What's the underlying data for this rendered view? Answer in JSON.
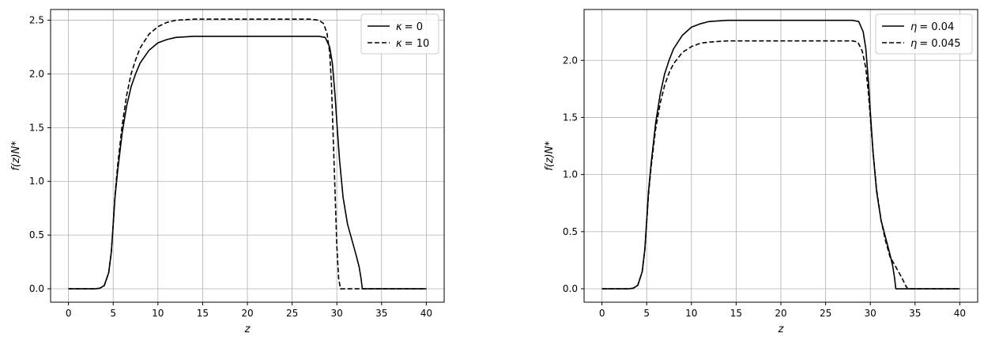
{
  "chart_data": [
    {
      "type": "line",
      "xlabel": "z",
      "ylabel": "f(z)N*",
      "xlim": [
        -2,
        42
      ],
      "ylim": [
        -0.125,
        2.6
      ],
      "xticks": [
        0,
        5,
        10,
        15,
        20,
        25,
        30,
        35,
        40
      ],
      "yticks": [
        0.0,
        0.5,
        1.0,
        1.5,
        2.0,
        2.5
      ],
      "xtick_labels": [
        "0",
        "5",
        "10",
        "15",
        "20",
        "25",
        "30",
        "35",
        "40"
      ],
      "ytick_labels": [
        "0.0",
        "0.5",
        "1.0",
        "1.5",
        "2.0",
        "2.5"
      ],
      "grid": true,
      "legend_position": "top-right",
      "series": [
        {
          "name": "κ = 0",
          "legend_symbol": "κ",
          "legend_value": "= 0",
          "style": "solid",
          "color": "#000000",
          "points": [
            [
              0,
              0
            ],
            [
              3,
              0
            ],
            [
              3.5,
              0.005
            ],
            [
              4,
              0.03
            ],
            [
              4.5,
              0.15
            ],
            [
              4.8,
              0.35
            ],
            [
              5,
              0.6
            ],
            [
              5.2,
              0.85
            ],
            [
              5.5,
              1.1
            ],
            [
              6,
              1.45
            ],
            [
              6.5,
              1.7
            ],
            [
              7,
              1.88
            ],
            [
              7.5,
              2.0
            ],
            [
              8,
              2.1
            ],
            [
              9,
              2.22
            ],
            [
              10,
              2.29
            ],
            [
              11,
              2.32
            ],
            [
              12,
              2.34
            ],
            [
              14,
              2.35
            ],
            [
              20,
              2.35
            ],
            [
              26,
              2.35
            ],
            [
              28,
              2.35
            ],
            [
              28.7,
              2.34
            ],
            [
              29.2,
              2.25
            ],
            [
              29.5,
              2.1
            ],
            [
              29.8,
              1.8
            ],
            [
              30,
              1.55
            ],
            [
              30.3,
              1.2
            ],
            [
              30.7,
              0.85
            ],
            [
              31.2,
              0.6
            ],
            [
              31.7,
              0.45
            ],
            [
              32.2,
              0.3
            ],
            [
              32.5,
              0.2
            ],
            [
              32.7,
              0.1
            ],
            [
              32.85,
              0
            ],
            [
              40,
              0
            ]
          ]
        },
        {
          "name": "κ = 10",
          "legend_symbol": "κ",
          "legend_value": "= 10",
          "style": "dashed",
          "color": "#000000",
          "points": [
            [
              0,
              0
            ],
            [
              3,
              0
            ],
            [
              3.5,
              0.005
            ],
            [
              4,
              0.03
            ],
            [
              4.5,
              0.15
            ],
            [
              4.8,
              0.35
            ],
            [
              5,
              0.6
            ],
            [
              5.2,
              0.87
            ],
            [
              5.5,
              1.15
            ],
            [
              6,
              1.52
            ],
            [
              6.5,
              1.8
            ],
            [
              7,
              2.0
            ],
            [
              7.5,
              2.13
            ],
            [
              8,
              2.24
            ],
            [
              9,
              2.37
            ],
            [
              10,
              2.44
            ],
            [
              11,
              2.48
            ],
            [
              12,
              2.5
            ],
            [
              14,
              2.51
            ],
            [
              20,
              2.51
            ],
            [
              27,
              2.51
            ],
            [
              28,
              2.5
            ],
            [
              28.5,
              2.47
            ],
            [
              28.9,
              2.38
            ],
            [
              29.2,
              2.2
            ],
            [
              29.4,
              1.9
            ],
            [
              29.6,
              1.4
            ],
            [
              29.8,
              0.9
            ],
            [
              30.0,
              0.4
            ],
            [
              30.2,
              0.1
            ],
            [
              30.4,
              0
            ],
            [
              40,
              0
            ]
          ]
        }
      ]
    },
    {
      "type": "line",
      "xlabel": "z",
      "ylabel": "f(z)N*",
      "xlim": [
        -2,
        42
      ],
      "ylim": [
        -0.1175,
        2.445
      ],
      "xticks": [
        0,
        5,
        10,
        15,
        20,
        25,
        30,
        35,
        40
      ],
      "yticks": [
        0.0,
        0.5,
        1.0,
        1.5,
        2.0
      ],
      "xtick_labels": [
        "0",
        "5",
        "10",
        "15",
        "20",
        "25",
        "30",
        "35",
        "40"
      ],
      "ytick_labels": [
        "0.0",
        "0.5",
        "1.0",
        "1.5",
        "2.0"
      ],
      "grid": true,
      "legend_position": "top-right",
      "series": [
        {
          "name": "η = 0.04",
          "legend_symbol": "η",
          "legend_value": "= 0.04",
          "style": "solid",
          "color": "#000000",
          "points": [
            [
              0,
              0
            ],
            [
              3,
              0
            ],
            [
              3.5,
              0.005
            ],
            [
              4,
              0.03
            ],
            [
              4.5,
              0.15
            ],
            [
              4.8,
              0.35
            ],
            [
              5,
              0.6
            ],
            [
              5.2,
              0.85
            ],
            [
              5.5,
              1.1
            ],
            [
              6,
              1.45
            ],
            [
              6.5,
              1.7
            ],
            [
              7,
              1.88
            ],
            [
              7.5,
              2.0
            ],
            [
              8,
              2.1
            ],
            [
              9,
              2.22
            ],
            [
              10,
              2.29
            ],
            [
              11,
              2.32
            ],
            [
              12,
              2.34
            ],
            [
              14,
              2.35
            ],
            [
              20,
              2.35
            ],
            [
              26,
              2.35
            ],
            [
              28,
              2.35
            ],
            [
              28.7,
              2.34
            ],
            [
              29.2,
              2.25
            ],
            [
              29.5,
              2.1
            ],
            [
              29.8,
              1.8
            ],
            [
              30,
              1.55
            ],
            [
              30.3,
              1.2
            ],
            [
              30.7,
              0.85
            ],
            [
              31.2,
              0.6
            ],
            [
              31.7,
              0.45
            ],
            [
              32.2,
              0.3
            ],
            [
              32.5,
              0.2
            ],
            [
              32.7,
              0.1
            ],
            [
              32.85,
              0
            ],
            [
              40,
              0
            ]
          ]
        },
        {
          "name": "η = 0.045",
          "legend_symbol": "η",
          "legend_value": "= 0.045",
          "style": "dashed",
          "color": "#000000",
          "points": [
            [
              0,
              0
            ],
            [
              3,
              0
            ],
            [
              3.5,
              0.005
            ],
            [
              4,
              0.03
            ],
            [
              4.5,
              0.15
            ],
            [
              4.8,
              0.35
            ],
            [
              5,
              0.58
            ],
            [
              5.2,
              0.82
            ],
            [
              5.5,
              1.07
            ],
            [
              6,
              1.4
            ],
            [
              6.5,
              1.62
            ],
            [
              7,
              1.78
            ],
            [
              7.5,
              1.89
            ],
            [
              8,
              1.97
            ],
            [
              9,
              2.07
            ],
            [
              10,
              2.12
            ],
            [
              11,
              2.15
            ],
            [
              12,
              2.16
            ],
            [
              14,
              2.17
            ],
            [
              20,
              2.17
            ],
            [
              26,
              2.17
            ],
            [
              28,
              2.17
            ],
            [
              28.6,
              2.16
            ],
            [
              29.1,
              2.08
            ],
            [
              29.5,
              1.93
            ],
            [
              29.8,
              1.7
            ],
            [
              30,
              1.5
            ],
            [
              30.3,
              1.2
            ],
            [
              30.7,
              0.87
            ],
            [
              31.2,
              0.6
            ],
            [
              31.7,
              0.42
            ],
            [
              32.2,
              0.28
            ],
            [
              33,
              0.17
            ],
            [
              33.5,
              0.1
            ],
            [
              34,
              0.02
            ],
            [
              34.2,
              0
            ],
            [
              40,
              0
            ]
          ]
        }
      ]
    }
  ]
}
